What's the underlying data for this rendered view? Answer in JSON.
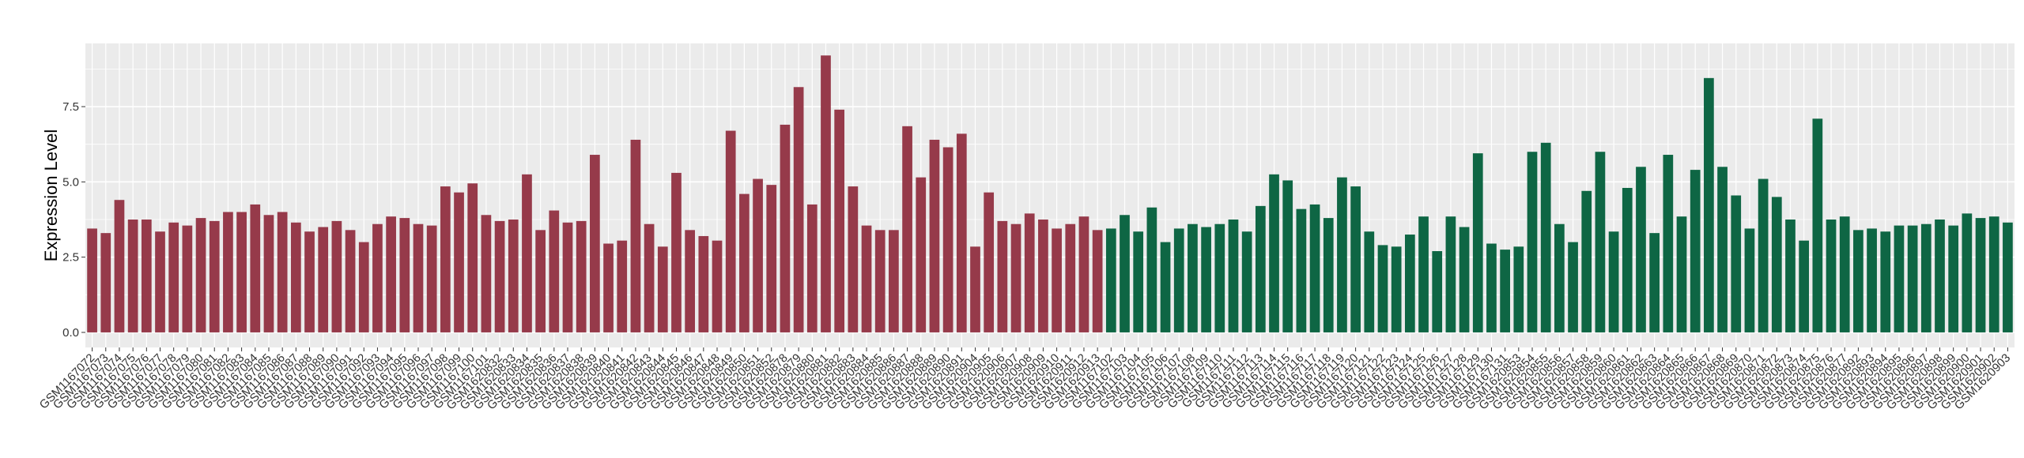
{
  "chart_data": {
    "type": "bar",
    "title": "",
    "xlabel": "",
    "ylabel": "Expression Level",
    "ylim": [
      -0.5,
      9.6
    ],
    "yticks": [
      0.0,
      2.5,
      5.0,
      7.5
    ],
    "ytick_labels": [
      "0.0",
      "2.5",
      "5.0",
      "7.5"
    ],
    "grid": true,
    "legend": "none",
    "colors": {
      "group1": "#963a4a",
      "group2": "#0e6644",
      "panel": "#ebebeb",
      "grid": "#ffffff"
    },
    "series": [
      {
        "color": "#963a4a",
        "categories": [
          "GSM1167072",
          "GSM1167073",
          "GSM1167074",
          "GSM1167075",
          "GSM1167076",
          "GSM1167077",
          "GSM1167078",
          "GSM1167079",
          "GSM1167080",
          "GSM1167081",
          "GSM1167082",
          "GSM1167083",
          "GSM1167084",
          "GSM1167085",
          "GSM1167086",
          "GSM1167087",
          "GSM1167088",
          "GSM1167089",
          "GSM1167090",
          "GSM1167091",
          "GSM1167092",
          "GSM1167093",
          "GSM1167094",
          "GSM1167095",
          "GSM1167096",
          "GSM1167097",
          "GSM1167098",
          "GSM1167099",
          "GSM1167100",
          "GSM1167101",
          "GSM1620832",
          "GSM1620833",
          "GSM1620834",
          "GSM1620835",
          "GSM1620836",
          "GSM1620837",
          "GSM1620838",
          "GSM1620839",
          "GSM1620840",
          "GSM1620841",
          "GSM1620842",
          "GSM1620843",
          "GSM1620844",
          "GSM1620845",
          "GSM1620846",
          "GSM1620847",
          "GSM1620848",
          "GSM1620849",
          "GSM1620850",
          "GSM1620851",
          "GSM1620852",
          "GSM1620878",
          "GSM1620879",
          "GSM1620880",
          "GSM1620881",
          "GSM1620882",
          "GSM1620883",
          "GSM1620884",
          "GSM1620885",
          "GSM1620886",
          "GSM1620887",
          "GSM1620888",
          "GSM1620889",
          "GSM1620890",
          "GSM1620891",
          "GSM1620904",
          "GSM1620905",
          "GSM1620906",
          "GSM1620907",
          "GSM1620908",
          "GSM1620909",
          "GSM1620910",
          "GSM1620911",
          "GSM1620912",
          "GSM1620913"
        ],
        "values": [
          3.45,
          3.3,
          4.4,
          3.75,
          3.75,
          3.35,
          3.65,
          3.55,
          3.8,
          3.7,
          4.0,
          4.0,
          4.25,
          3.9,
          4.0,
          3.65,
          3.35,
          3.5,
          3.7,
          3.4,
          3.0,
          3.6,
          3.85,
          3.8,
          3.6,
          3.55,
          4.85,
          4.65,
          4.95,
          3.9,
          3.7,
          3.75,
          5.25,
          3.4,
          4.05,
          3.65,
          3.7,
          5.9,
          2.95,
          3.05,
          6.4,
          3.6,
          2.85,
          5.3,
          3.4,
          3.2,
          3.05,
          6.7,
          4.6,
          5.1,
          4.9,
          6.9,
          8.15,
          4.25,
          9.2,
          7.4,
          4.85,
          3.55,
          3.4,
          3.4,
          6.85,
          5.15,
          6.4,
          6.15,
          6.6,
          2.85,
          4.65,
          3.7,
          3.6,
          3.95,
          3.75,
          3.45,
          3.6,
          3.85,
          3.4
        ]
      },
      {
        "color": "#0e6644",
        "categories": [
          "GSM1167102",
          "GSM1167103",
          "GSM1167104",
          "GSM1167105",
          "GSM1167106",
          "GSM1167107",
          "GSM1167108",
          "GSM1167109",
          "GSM1167110",
          "GSM1167111",
          "GSM1167112",
          "GSM1167113",
          "GSM1167114",
          "GSM1167115",
          "GSM1167116",
          "GSM1167117",
          "GSM1167118",
          "GSM1167119",
          "GSM1167120",
          "GSM1167121",
          "GSM1167122",
          "GSM1167123",
          "GSM1167124",
          "GSM1167125",
          "GSM1167126",
          "GSM1167127",
          "GSM1167128",
          "GSM1167129",
          "GSM1167130",
          "GSM1167131",
          "GSM1620853",
          "GSM1620854",
          "GSM1620855",
          "GSM1620856",
          "GSM1620857",
          "GSM1620858",
          "GSM1620859",
          "GSM1620860",
          "GSM1620861",
          "GSM1620862",
          "GSM1620863",
          "GSM1620864",
          "GSM1620865",
          "GSM1620866",
          "GSM1620867",
          "GSM1620868",
          "GSM1620869",
          "GSM1620870",
          "GSM1620871",
          "GSM1620872",
          "GSM1620873",
          "GSM1620874",
          "GSM1620875",
          "GSM1620876",
          "GSM1620877",
          "GSM1620892",
          "GSM1620893",
          "GSM1620894",
          "GSM1620895",
          "GSM1620896",
          "GSM1620897",
          "GSM1620898",
          "GSM1620899",
          "GSM1620900",
          "GSM1620901",
          "GSM1620902",
          "GSM1620903"
        ],
        "values": [
          3.45,
          3.9,
          3.35,
          4.15,
          3.0,
          3.45,
          3.6,
          3.5,
          3.6,
          3.75,
          3.35,
          4.2,
          5.25,
          5.05,
          4.1,
          4.25,
          3.8,
          5.15,
          4.85,
          3.35,
          2.9,
          2.85,
          3.25,
          3.85,
          2.7,
          3.85,
          3.5,
          5.95,
          2.95,
          2.75,
          2.85,
          6.0,
          6.3,
          3.6,
          3.0,
          4.7,
          6.0,
          3.35,
          4.8,
          5.5,
          3.3,
          5.9,
          3.85,
          5.4,
          8.45,
          5.5,
          4.55,
          3.45,
          5.1,
          4.5,
          3.75,
          3.05,
          7.1,
          3.75,
          3.85,
          3.4,
          3.45,
          3.35,
          3.55,
          3.55,
          3.6,
          3.75,
          3.55,
          3.95,
          3.8,
          3.85,
          3.65
        ]
      }
    ]
  }
}
